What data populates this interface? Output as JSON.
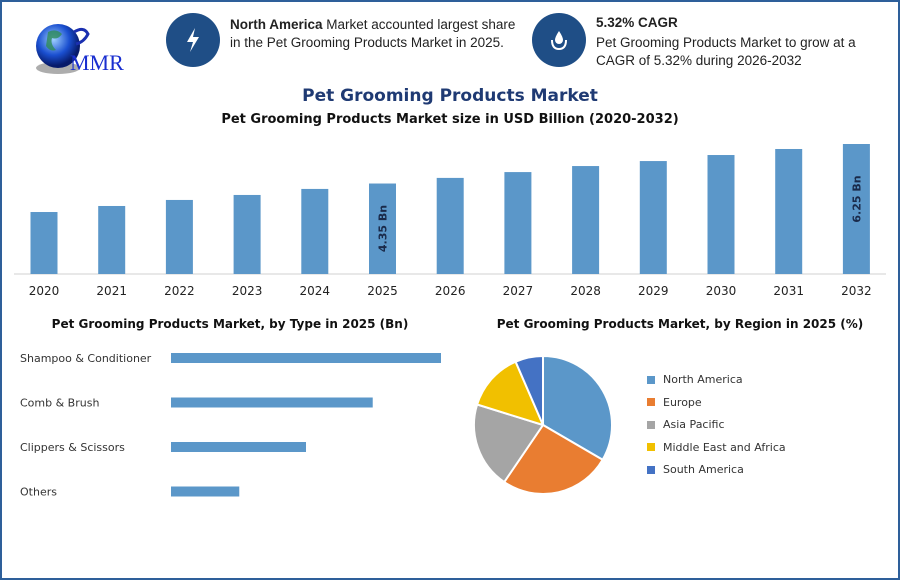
{
  "logo": {
    "text": "MMR"
  },
  "info_cards": [
    {
      "icon": "lightning-bolt-icon",
      "bold": "North America",
      "text": " Market accounted largest share in the Pet Grooming Products Market in 2025."
    },
    {
      "icon": "droplet-hand-icon",
      "bold": "5.32% CAGR",
      "text": "Pet Grooming Products Market to grow at a CAGR of 5.32% during 2026-2032"
    }
  ],
  "main_title": "Pet Grooming Products Market",
  "colors": {
    "bar": "#5b97c9",
    "title": "#1f3a73",
    "frame": "#2e5f9a"
  },
  "chart_data": [
    {
      "type": "bar",
      "title": "Pet Grooming Products Market size in USD Billion (2020-2032)",
      "categories": [
        "2020",
        "2021",
        "2022",
        "2023",
        "2024",
        "2025",
        "2026",
        "2027",
        "2028",
        "2029",
        "2030",
        "2031",
        "2032"
      ],
      "values": [
        2.98,
        3.27,
        3.56,
        3.8,
        4.09,
        4.35,
        4.62,
        4.9,
        5.19,
        5.43,
        5.72,
        6.01,
        6.25
      ],
      "data_labels": {
        "2025": "4.35 Bn",
        "2032": "6.25 Bn"
      },
      "ylim": [
        0,
        6.5
      ],
      "grid": false
    },
    {
      "type": "bar",
      "orientation": "horizontal",
      "title": "Pet Grooming Products Market, by Type in 2025 (Bn)",
      "categories": [
        "Shampoo & Conditioner",
        "Comb & Brush",
        "Clippers & Scissors",
        "Others"
      ],
      "values": [
        1.74,
        1.3,
        0.87,
        0.44
      ],
      "grid": false
    },
    {
      "type": "pie",
      "title": "Pet Grooming Products Market, by Region in 2025 (%)",
      "categories": [
        "North America",
        "Europe",
        "Asia Pacific",
        "Middle East and Africa",
        "South America"
      ],
      "values": [
        33.4,
        26.1,
        20.3,
        13.7,
        6.5
      ],
      "colors": [
        "#5b97c9",
        "#e97d31",
        "#a5a5a5",
        "#f1c000",
        "#4472c4"
      ],
      "legend": "right"
    }
  ]
}
